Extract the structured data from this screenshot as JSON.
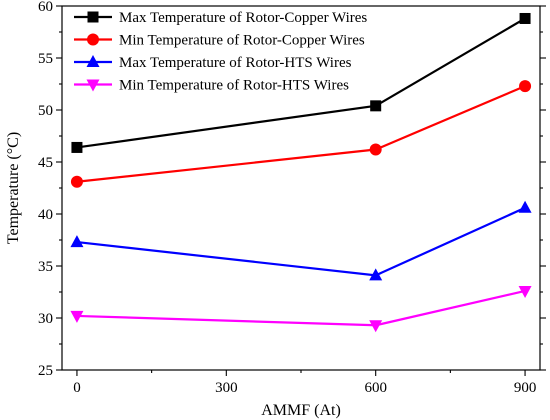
{
  "chart_data": {
    "type": "line",
    "title": "",
    "xlabel": "AMMF (At)",
    "ylabel": "Temperature (°C)",
    "xlim": [
      -30,
      930
    ],
    "ylim": [
      25,
      60
    ],
    "x_ticks": [
      0,
      300,
      600,
      900
    ],
    "y_ticks": [
      25,
      30,
      35,
      40,
      45,
      50,
      55,
      60
    ],
    "x_tick_labels": [
      "0",
      "300",
      "600",
      "900"
    ],
    "y_tick_labels": [
      "25",
      "30",
      "35",
      "40",
      "45",
      "50",
      "55",
      "60"
    ],
    "grid": false,
    "legend_position": "top-left",
    "x": [
      0,
      600,
      900
    ],
    "series": [
      {
        "name": "Max Temperature of Rotor-Copper Wires",
        "values": [
          46.4,
          50.4,
          58.8
        ],
        "color": "#000000",
        "marker": "square"
      },
      {
        "name": "Min Temperature of Rotor-Copper Wires",
        "values": [
          43.1,
          46.2,
          52.3
        ],
        "color": "#ff0000",
        "marker": "circle"
      },
      {
        "name": "Max Temperature of Rotor-HTS Wires",
        "values": [
          37.3,
          34.1,
          40.6
        ],
        "color": "#0000ff",
        "marker": "triangle-up"
      },
      {
        "name": "Min Temperature of Rotor-HTS Wires",
        "values": [
          30.2,
          29.3,
          32.6
        ],
        "color": "#ff00ff",
        "marker": "triangle-down"
      }
    ]
  }
}
